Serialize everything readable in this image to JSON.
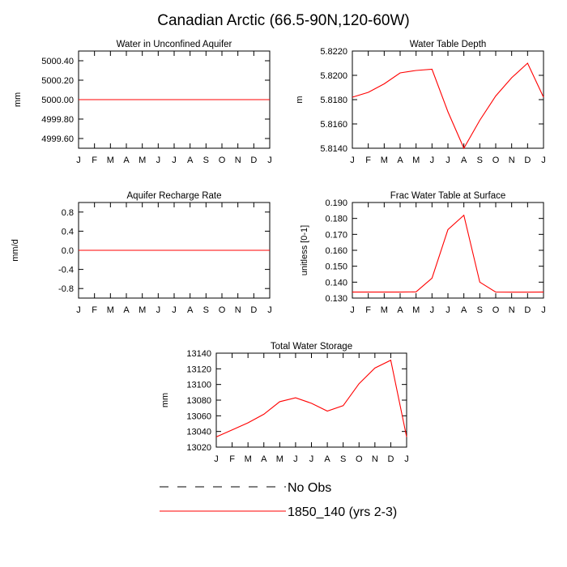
{
  "figure_title": "Canadian Arctic (66.5-90N,120-60W)",
  "legend": {
    "entries": [
      {
        "label": "No Obs",
        "style": "dashed",
        "color": "#000000"
      },
      {
        "label": "1850_140 (yrs 2-3)",
        "style": "solid",
        "color": "#ff0000"
      }
    ]
  },
  "chart_data": [
    {
      "type": "line",
      "title": "Water in Unconfined Aquifer",
      "ylabel": "mm",
      "xlabel": "",
      "categories": [
        "J",
        "F",
        "M",
        "A",
        "M",
        "J",
        "J",
        "A",
        "S",
        "O",
        "N",
        "D",
        "J"
      ],
      "ylim": [
        4999.5,
        5000.5
      ],
      "yticks": [
        "5000.40",
        "5000.20",
        "5000.00",
        "4999.80",
        "4999.60"
      ],
      "ytick_values": [
        5000.4,
        5000.2,
        5000.0,
        4999.8,
        4999.6
      ],
      "series": [
        {
          "name": "1850_140 (yrs 2-3)",
          "color": "#ff0000",
          "values": [
            5000,
            5000,
            5000,
            5000,
            5000,
            5000,
            5000,
            5000,
            5000,
            5000,
            5000,
            5000,
            5000
          ]
        }
      ]
    },
    {
      "type": "line",
      "title": "Water Table Depth",
      "ylabel": "m",
      "xlabel": "",
      "categories": [
        "J",
        "F",
        "M",
        "A",
        "M",
        "J",
        "J",
        "A",
        "S",
        "O",
        "N",
        "D",
        "J"
      ],
      "ylim": [
        5.814,
        5.822
      ],
      "yticks": [
        "5.8220",
        "5.8200",
        "5.8180",
        "5.8160",
        "5.8140"
      ],
      "ytick_values": [
        5.822,
        5.82,
        5.818,
        5.816,
        5.814
      ],
      "series": [
        {
          "name": "1850_140 (yrs 2-3)",
          "color": "#ff0000",
          "values": [
            5.8182,
            5.8186,
            5.8193,
            5.8202,
            5.8204,
            5.8205,
            5.817,
            5.814,
            5.8163,
            5.8183,
            5.8198,
            5.821,
            5.8182
          ]
        }
      ]
    },
    {
      "type": "line",
      "title": "Aquifer Recharge Rate",
      "ylabel": "mm/d",
      "xlabel": "",
      "categories": [
        "J",
        "F",
        "M",
        "A",
        "M",
        "J",
        "J",
        "A",
        "S",
        "O",
        "N",
        "D",
        "J"
      ],
      "ylim": [
        -1.0,
        1.0
      ],
      "yticks": [
        "0.8",
        "0.4",
        "0.0",
        "-0.4",
        "-0.8"
      ],
      "ytick_values": [
        0.8,
        0.4,
        0.0,
        -0.4,
        -0.8
      ],
      "series": [
        {
          "name": "1850_140 (yrs 2-3)",
          "color": "#ff0000",
          "values": [
            0,
            0,
            0,
            0,
            0,
            0,
            0,
            0,
            0,
            0,
            0,
            0,
            0
          ]
        }
      ]
    },
    {
      "type": "line",
      "title": "Frac Water Table at Surface",
      "ylabel": "unitless [0-1]",
      "xlabel": "",
      "categories": [
        "J",
        "F",
        "M",
        "A",
        "M",
        "J",
        "J",
        "A",
        "S",
        "O",
        "N",
        "D",
        "J"
      ],
      "ylim": [
        0.13,
        0.19
      ],
      "yticks": [
        "0.190",
        "0.180",
        "0.170",
        "0.160",
        "0.150",
        "0.140",
        "0.130"
      ],
      "ytick_values": [
        0.19,
        0.18,
        0.17,
        0.16,
        0.15,
        0.14,
        0.13
      ],
      "series": [
        {
          "name": "1850_140 (yrs 2-3)",
          "color": "#ff0000",
          "values": [
            0.1338,
            0.1338,
            0.1338,
            0.1338,
            0.1339,
            0.1425,
            0.173,
            0.182,
            0.14,
            0.1338,
            0.1337,
            0.1337,
            0.1338
          ]
        }
      ]
    },
    {
      "type": "line",
      "title": "Total Water Storage",
      "ylabel": "mm",
      "xlabel": "",
      "categories": [
        "J",
        "F",
        "M",
        "A",
        "M",
        "J",
        "J",
        "A",
        "S",
        "O",
        "N",
        "D",
        "J"
      ],
      "ylim": [
        13020,
        13140
      ],
      "yticks": [
        "13140",
        "13120",
        "13100",
        "13080",
        "13060",
        "13040",
        "13020"
      ],
      "ytick_values": [
        13140,
        13120,
        13100,
        13080,
        13060,
        13040,
        13020
      ],
      "series": [
        {
          "name": "1850_140 (yrs 2-3)",
          "color": "#ff0000",
          "values": [
            13033,
            13042,
            13051,
            13062,
            13078,
            13083,
            13076,
            13066,
            13073,
            13101,
            13121,
            13131,
            13033
          ]
        }
      ]
    }
  ]
}
